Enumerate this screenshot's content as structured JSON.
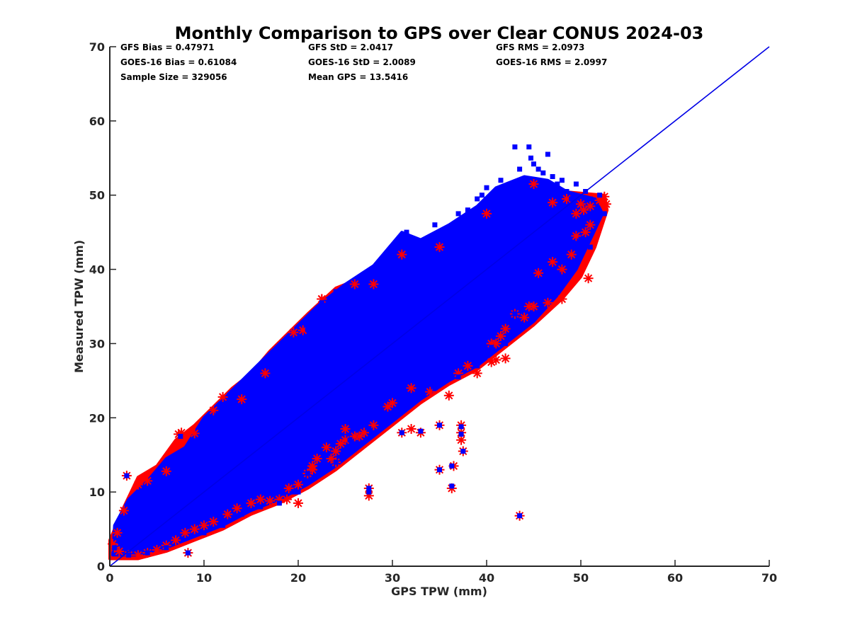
{
  "chart_data": {
    "type": "scatter",
    "title": "Monthly Comparison to GPS over Clear CONUS 2024-03",
    "xlabel": "GPS TPW (mm)",
    "ylabel": "Measured TPW (mm)",
    "xlim": [
      0,
      70
    ],
    "ylim": [
      0,
      70
    ],
    "xticks": [
      "0",
      "10",
      "20",
      "30",
      "40",
      "50",
      "60",
      "70"
    ],
    "yticks": [
      "0",
      "10",
      "20",
      "30",
      "40",
      "50",
      "60",
      "70"
    ],
    "grid": false,
    "legend": "none",
    "stats": [
      [
        "GFS Bias = 0.47971",
        "GFS StD = 2.0417",
        "GFS RMS = 2.0973"
      ],
      [
        "GOES-16 Bias = 0.61084",
        "GOES-16 StD = 2.0089",
        "GOES-16 RMS = 2.0997"
      ],
      [
        "Sample Size = 329056",
        "Mean GPS = 13.5416",
        ""
      ]
    ],
    "reference_line": {
      "x": [
        0,
        70
      ],
      "y": [
        0,
        70
      ],
      "color": "#0000e6"
    },
    "series": [
      {
        "marker": "asterisk",
        "color": "#ff0000",
        "points": [
          [
            1.8,
            12.2
          ],
          [
            3.0,
            11.0
          ],
          [
            4.0,
            11.5
          ],
          [
            6.0,
            12.8
          ],
          [
            7.3,
            17.8
          ],
          [
            7.6,
            18.0
          ],
          [
            9.0,
            17.9
          ],
          [
            12.0,
            22.8
          ],
          [
            11.0,
            21.0
          ],
          [
            14.0,
            22.5
          ],
          [
            16.5,
            26.0
          ],
          [
            19.5,
            31.5
          ],
          [
            20.5,
            31.8
          ],
          [
            22.5,
            36.0
          ],
          [
            26.0,
            38.0
          ],
          [
            28.0,
            38.0
          ],
          [
            31.0,
            42.0
          ],
          [
            35.0,
            43.0
          ],
          [
            40.0,
            47.5
          ],
          [
            45.0,
            51.5
          ],
          [
            47.0,
            49.0
          ],
          [
            48.5,
            49.5
          ],
          [
            50.0,
            48.8
          ],
          [
            51.0,
            48.5
          ],
          [
            52.0,
            49.3
          ],
          [
            52.7,
            48.8
          ],
          [
            52.5,
            49.8
          ],
          [
            50.8,
            38.8
          ],
          [
            48.0,
            36.0
          ],
          [
            46.5,
            35.5
          ],
          [
            45.0,
            35.0
          ],
          [
            44.0,
            33.5
          ],
          [
            42.0,
            28.0
          ],
          [
            41.0,
            30.0
          ],
          [
            40.5,
            27.5
          ],
          [
            39.0,
            26.0
          ],
          [
            38.0,
            27.0
          ],
          [
            37.0,
            26.0
          ],
          [
            36.0,
            23.0
          ],
          [
            34.0,
            23.5
          ],
          [
            32.0,
            24.0
          ],
          [
            30.0,
            22.0
          ],
          [
            29.5,
            21.5
          ],
          [
            28.0,
            19.0
          ],
          [
            27.0,
            18.0
          ],
          [
            26.0,
            17.5
          ],
          [
            25.0,
            17.0
          ],
          [
            24.5,
            16.5
          ],
          [
            23.0,
            16.0
          ],
          [
            22.0,
            14.5
          ],
          [
            21.5,
            13.5
          ],
          [
            21.0,
            12.5
          ],
          [
            20.0,
            11.0
          ],
          [
            19.0,
            10.5
          ],
          [
            18.0,
            9.0
          ],
          [
            17.0,
            8.8
          ],
          [
            16.0,
            9.0
          ],
          [
            15.0,
            8.5
          ],
          [
            13.5,
            7.8
          ],
          [
            12.5,
            7.0
          ],
          [
            11.0,
            6.0
          ],
          [
            10.0,
            5.5
          ],
          [
            9.0,
            5.0
          ],
          [
            8.0,
            4.5
          ],
          [
            8.3,
            1.8
          ],
          [
            7.0,
            3.5
          ],
          [
            6.0,
            2.8
          ],
          [
            5.0,
            2.2
          ],
          [
            4.0,
            1.8
          ],
          [
            3.0,
            1.5
          ],
          [
            2.0,
            1.5
          ],
          [
            1.0,
            2.0
          ],
          [
            0.5,
            2.5
          ],
          [
            0.3,
            3.0
          ],
          [
            0.8,
            4.5
          ],
          [
            1.5,
            7.5
          ],
          [
            18.8,
            9.0
          ],
          [
            20.0,
            8.5
          ],
          [
            23.5,
            14.5
          ],
          [
            24.0,
            14.0
          ],
          [
            25.0,
            18.5
          ],
          [
            26.5,
            17.5
          ],
          [
            27.5,
            9.5
          ],
          [
            27.5,
            10.5
          ],
          [
            31.0,
            18.0
          ],
          [
            32.0,
            18.5
          ],
          [
            33.0,
            18.0
          ],
          [
            35.0,
            19.0
          ],
          [
            37.3,
            19.0
          ],
          [
            37.3,
            18.0
          ],
          [
            37.3,
            17.0
          ],
          [
            37.5,
            15.5
          ],
          [
            35.0,
            13.0
          ],
          [
            36.5,
            13.5
          ],
          [
            36.3,
            10.5
          ],
          [
            43.5,
            6.8
          ],
          [
            41.0,
            27.8
          ],
          [
            45.5,
            39.5
          ],
          [
            47.0,
            41.0
          ],
          [
            48.0,
            40.0
          ],
          [
            49.0,
            42.0
          ],
          [
            49.5,
            44.5
          ],
          [
            50.5,
            45.0
          ],
          [
            51.0,
            46.0
          ],
          [
            50.3,
            48.0
          ],
          [
            49.5,
            47.5
          ],
          [
            44.5,
            35.0
          ],
          [
            43.0,
            34.0
          ],
          [
            42.0,
            32.0
          ],
          [
            41.5,
            31.0
          ],
          [
            40.5,
            30.0
          ],
          [
            22.5,
            36.0
          ],
          [
            21.5,
            13.0
          ],
          [
            24.0,
            15.5
          ]
        ]
      },
      {
        "marker": "square",
        "color": "#0000ff",
        "points": [
          [
            1.8,
            12.2
          ],
          [
            7.5,
            17.5
          ],
          [
            11.5,
            20.5
          ],
          [
            15.5,
            25.0
          ],
          [
            19.0,
            30.5
          ],
          [
            21.0,
            32.0
          ],
          [
            22.5,
            35.5
          ],
          [
            24.0,
            37.0
          ],
          [
            27.0,
            38.5
          ],
          [
            30.0,
            41.5
          ],
          [
            31.0,
            44.5
          ],
          [
            31.5,
            45.0
          ],
          [
            34.5,
            46.0
          ],
          [
            37.0,
            47.5
          ],
          [
            38.0,
            48.0
          ],
          [
            39.0,
            49.5
          ],
          [
            39.5,
            50.0
          ],
          [
            40.0,
            51.0
          ],
          [
            41.5,
            52.0
          ],
          [
            42.5,
            51.5
          ],
          [
            43.5,
            53.5
          ],
          [
            43.0,
            56.5
          ],
          [
            44.5,
            56.5
          ],
          [
            44.7,
            55.0
          ],
          [
            45.0,
            54.2
          ],
          [
            45.5,
            53.5
          ],
          [
            46.0,
            53.0
          ],
          [
            46.5,
            55.5
          ],
          [
            47.0,
            52.5
          ],
          [
            47.5,
            51.5
          ],
          [
            48.0,
            52.0
          ],
          [
            48.5,
            50.5
          ],
          [
            49.0,
            49.5
          ],
          [
            49.5,
            51.5
          ],
          [
            50.5,
            50.5
          ],
          [
            51.0,
            49.5
          ],
          [
            52.0,
            50.0
          ],
          [
            52.5,
            47.5
          ],
          [
            51.0,
            43.0
          ],
          [
            50.0,
            44.0
          ],
          [
            48.0,
            42.0
          ],
          [
            47.5,
            39.5
          ],
          [
            46.0,
            37.0
          ],
          [
            44.5,
            36.0
          ],
          [
            44.0,
            32.5
          ],
          [
            43.0,
            34.0
          ],
          [
            42.0,
            30.0
          ],
          [
            40.5,
            29.5
          ],
          [
            39.0,
            27.0
          ],
          [
            37.0,
            25.5
          ],
          [
            34.5,
            24.0
          ],
          [
            32.0,
            22.5
          ],
          [
            29.5,
            20.0
          ],
          [
            27.5,
            18.5
          ],
          [
            25.5,
            17.0
          ],
          [
            23.0,
            15.0
          ],
          [
            21.0,
            12.5
          ],
          [
            19.5,
            10.0
          ],
          [
            18.0,
            8.5
          ],
          [
            16.0,
            8.0
          ],
          [
            14.0,
            7.0
          ],
          [
            12.0,
            5.5
          ],
          [
            10.0,
            4.5
          ],
          [
            8.3,
            1.8
          ],
          [
            6.0,
            2.5
          ],
          [
            4.0,
            1.8
          ],
          [
            2.0,
            1.5
          ],
          [
            0.5,
            2.5
          ],
          [
            27.5,
            10.0
          ],
          [
            27.5,
            10.5
          ],
          [
            31.0,
            18.0
          ],
          [
            33.0,
            18.2
          ],
          [
            35.0,
            19.0
          ],
          [
            37.3,
            18.8
          ],
          [
            37.3,
            17.8
          ],
          [
            37.5,
            15.5
          ],
          [
            35.0,
            13.0
          ],
          [
            36.3,
            13.5
          ],
          [
            36.3,
            10.8
          ],
          [
            43.5,
            6.8
          ],
          [
            22.5,
            35.5
          ],
          [
            20.0,
            10.0
          ],
          [
            24.0,
            14.0
          ]
        ]
      }
    ],
    "clouds": [
      {
        "color": "#ff0000",
        "outline": [
          [
            0.0,
            1.0
          ],
          [
            3.0,
            1.0
          ],
          [
            6.0,
            2.0
          ],
          [
            9.0,
            3.5
          ],
          [
            12.0,
            5.0
          ],
          [
            15.0,
            7.0
          ],
          [
            18.0,
            8.5
          ],
          [
            21.0,
            10.5
          ],
          [
            24.0,
            13.0
          ],
          [
            27.0,
            16.0
          ],
          [
            30.0,
            19.0
          ],
          [
            33.0,
            22.0
          ],
          [
            36.0,
            24.5
          ],
          [
            39.0,
            26.5
          ],
          [
            42.0,
            29.5
          ],
          [
            45.0,
            32.5
          ],
          [
            48.0,
            36.0
          ],
          [
            50.0,
            39.0
          ],
          [
            51.5,
            43.0
          ],
          [
            52.8,
            48.0
          ],
          [
            52.5,
            50.0
          ],
          [
            48.0,
            50.5
          ],
          [
            45.5,
            51.0
          ],
          [
            42.0,
            49.5
          ],
          [
            39.0,
            47.0
          ],
          [
            36.0,
            45.0
          ],
          [
            33.0,
            43.0
          ],
          [
            30.0,
            41.5
          ],
          [
            27.0,
            39.0
          ],
          [
            24.0,
            37.5
          ],
          [
            21.0,
            34.0
          ],
          [
            19.0,
            31.5
          ],
          [
            17.0,
            29.0
          ],
          [
            15.0,
            26.0
          ],
          [
            13.0,
            24.0
          ],
          [
            11.0,
            21.5
          ],
          [
            9.0,
            19.0
          ],
          [
            7.0,
            17.0
          ],
          [
            5.0,
            13.5
          ],
          [
            3.0,
            12.0
          ],
          [
            1.5,
            8.0
          ],
          [
            0.0,
            3.5
          ]
        ]
      },
      {
        "color": "#0000ff",
        "outline": [
          [
            0.3,
            1.5
          ],
          [
            3.0,
            1.5
          ],
          [
            6.0,
            2.5
          ],
          [
            9.0,
            4.0
          ],
          [
            12.0,
            5.5
          ],
          [
            15.0,
            7.5
          ],
          [
            18.0,
            9.0
          ],
          [
            21.0,
            11.0
          ],
          [
            24.0,
            13.5
          ],
          [
            27.0,
            16.5
          ],
          [
            30.0,
            19.5
          ],
          [
            33.0,
            22.5
          ],
          [
            36.0,
            25.0
          ],
          [
            39.0,
            27.0
          ],
          [
            42.0,
            30.0
          ],
          [
            45.0,
            33.0
          ],
          [
            47.5,
            36.5
          ],
          [
            49.5,
            40.0
          ],
          [
            51.0,
            44.0
          ],
          [
            52.3,
            47.5
          ],
          [
            51.5,
            49.5
          ],
          [
            48.5,
            50.5
          ],
          [
            46.5,
            52.0
          ],
          [
            44.0,
            52.5
          ],
          [
            41.0,
            51.0
          ],
          [
            39.0,
            48.5
          ],
          [
            36.0,
            46.0
          ],
          [
            33.0,
            44.0
          ],
          [
            31.0,
            45.0
          ],
          [
            28.0,
            40.5
          ],
          [
            25.0,
            38.0
          ],
          [
            22.0,
            35.0
          ],
          [
            20.0,
            32.5
          ],
          [
            18.0,
            30.0
          ],
          [
            16.0,
            27.5
          ],
          [
            14.0,
            25.0
          ],
          [
            12.0,
            22.5
          ],
          [
            10.0,
            20.0
          ],
          [
            8.0,
            16.0
          ],
          [
            6.0,
            14.5
          ],
          [
            4.0,
            11.5
          ],
          [
            2.0,
            9.0
          ],
          [
            0.5,
            5.5
          ]
        ]
      }
    ]
  }
}
